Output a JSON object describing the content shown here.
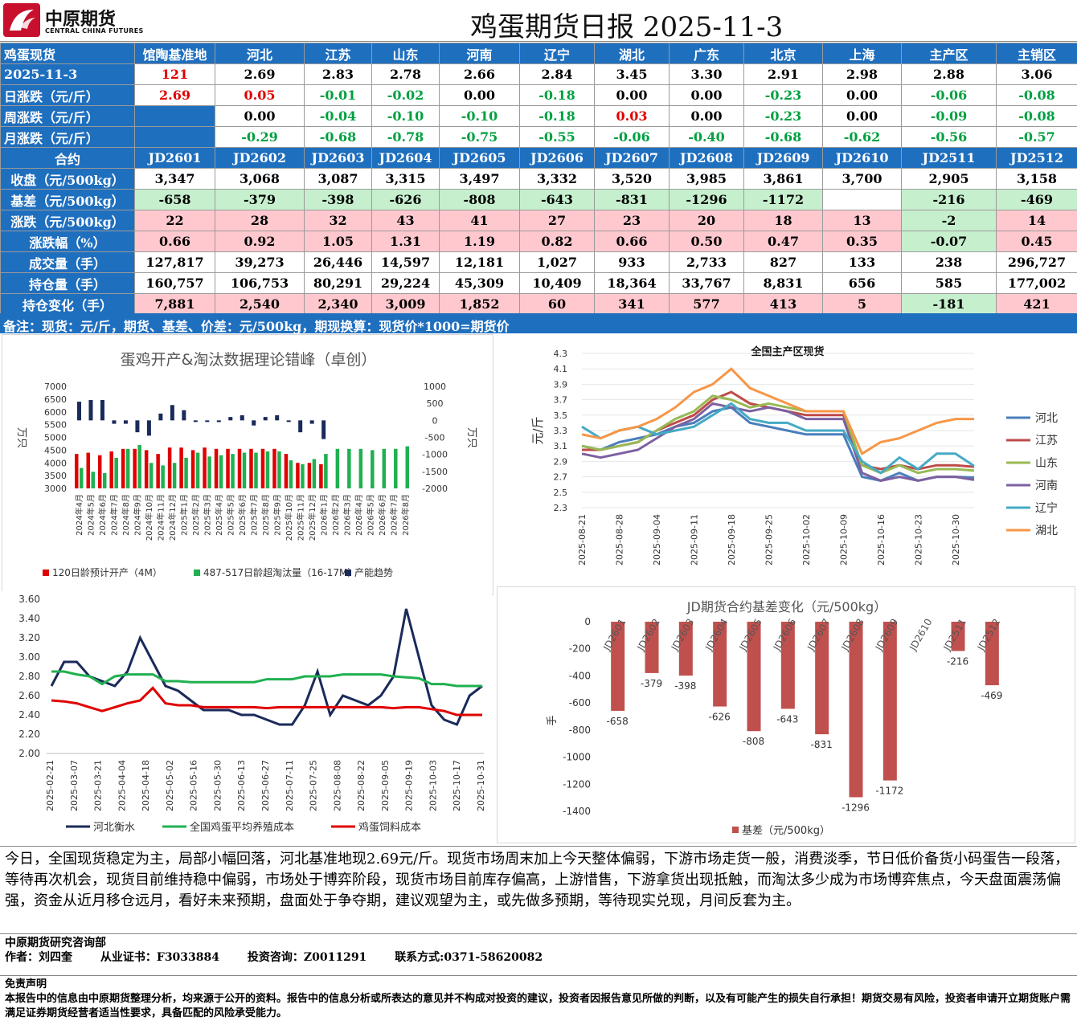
{
  "header": {
    "logo_cn": "中原期货",
    "logo_en": "CENTRAL CHINA FUTURES",
    "title": "鸡蛋期货日报 2025-11-3"
  },
  "spot": {
    "header": [
      "鸡蛋现货",
      "馆陶基准地",
      "河北",
      "江苏",
      "山东",
      "河南",
      "辽宁",
      "湖北",
      "广东",
      "北京",
      "上海",
      "主产区",
      "主销区"
    ],
    "rows": [
      {
        "label": "2025-11-3",
        "cells": [
          "121",
          "2.69",
          "2.83",
          "2.78",
          "2.66",
          "2.84",
          "3.45",
          "3.30",
          "2.91",
          "2.98",
          "2.88",
          "3.06"
        ]
      },
      {
        "label": "日涨跌（元/斤）",
        "cells": [
          "2.69",
          "0.05",
          "-0.01",
          "-0.02",
          "0.00",
          "-0.18",
          "0.00",
          "0.00",
          "-0.23",
          "0.00",
          "-0.06",
          "-0.08"
        ]
      },
      {
        "label": "周涨跌（元/斤）",
        "cells": [
          "",
          "0.00",
          "-0.04",
          "-0.10",
          "-0.10",
          "-0.18",
          "0.03",
          "0.00",
          "-0.23",
          "0.00",
          "-0.09",
          "-0.08"
        ]
      },
      {
        "label": "月涨跌（元/斤）",
        "cells": [
          "",
          "-0.29",
          "-0.68",
          "-0.78",
          "-0.75",
          "-0.55",
          "-0.06",
          "-0.40",
          "-0.68",
          "-0.62",
          "-0.56",
          "-0.57"
        ]
      }
    ]
  },
  "futures": {
    "header": [
      "合约",
      "JD2601",
      "JD2602",
      "JD2603",
      "JD2604",
      "JD2605",
      "JD2606",
      "JD2607",
      "JD2608",
      "JD2609",
      "JD2610",
      "JD2511",
      "JD2512"
    ],
    "rows": [
      {
        "label": "收盘（元/500kg）",
        "cells": [
          "3,347",
          "3,068",
          "3,087",
          "3,315",
          "3,497",
          "3,332",
          "3,520",
          "3,985",
          "3,861",
          "3,700",
          "2,905",
          "3,158"
        ]
      },
      {
        "label": "基差（元/500kg）",
        "cells": [
          "-658",
          "-379",
          "-398",
          "-626",
          "-808",
          "-643",
          "-831",
          "-1296",
          "-1172",
          "",
          "-216",
          "-469"
        ]
      },
      {
        "label": "涨跌（元/500kg）",
        "cells": [
          "22",
          "28",
          "32",
          "43",
          "41",
          "27",
          "23",
          "20",
          "18",
          "13",
          "-2",
          "14"
        ]
      },
      {
        "label": "涨跌幅（%）",
        "cells": [
          "0.66",
          "0.92",
          "1.05",
          "1.31",
          "1.19",
          "0.82",
          "0.66",
          "0.50",
          "0.47",
          "0.35",
          "-0.07",
          "0.45"
        ]
      },
      {
        "label": "成交量（手）",
        "cells": [
          "127,817",
          "39,273",
          "26,446",
          "14,597",
          "12,181",
          "1,027",
          "933",
          "2,733",
          "827",
          "133",
          "238",
          "296,727"
        ]
      },
      {
        "label": "持仓量（手）",
        "cells": [
          "160,757",
          "106,753",
          "80,291",
          "29,224",
          "45,309",
          "10,409",
          "18,364",
          "33,767",
          "8,831",
          "656",
          "585",
          "177,002"
        ]
      },
      {
        "label": "持仓变化（手）",
        "cells": [
          "7,881",
          "2,540",
          "2,340",
          "3,009",
          "1,852",
          "60",
          "341",
          "577",
          "413",
          "5",
          "-181",
          "421"
        ]
      }
    ]
  },
  "note": "备注：现货：元/斤，期货、基差、价差：元/500kg，期现换算：现货价*1000=期货价",
  "colors": {
    "blue": "#1f6fbf",
    "pink": "#ffc8ce",
    "green_fill": "#c6efce",
    "red_text": "#e00000",
    "green_text": "#00a040"
  },
  "chart_data": [
    {
      "type": "bar",
      "title": "蛋鸡开产&淘汰数据理论错峰（卓创）",
      "ylabel": "万只",
      "ylabel2": "万只",
      "ylim": [
        3000,
        7000
      ],
      "yticks": [
        3000,
        3500,
        4000,
        4500,
        5000,
        5500,
        6000,
        6500,
        7000
      ],
      "ylim2": [
        -2000,
        1000
      ],
      "yticks2": [
        -2000,
        -1500,
        -1000,
        -500,
        0,
        500,
        1000
      ],
      "categories": [
        "2024年4月",
        "2024年5月",
        "2024年6月",
        "2024年7月",
        "2024年8月",
        "2024年9月",
        "2024年10月",
        "2024年11月",
        "2024年12月",
        "2025年1月",
        "2025年2月",
        "2025年3月",
        "2025年4月",
        "2025年5月",
        "2025年6月",
        "2025年7月",
        "2025年8月",
        "2025年9月",
        "2025年10月",
        "2025年11月",
        "2025年12月",
        "2026年1月",
        "2026年2月",
        "2026年3月",
        "2026年4月",
        "2026年5月",
        "2026年6月",
        "2026年7月",
        "2026年8月"
      ],
      "series": [
        {
          "name": "120日龄预计开产（4M）",
          "color": "#e00000",
          "values": [
            4350,
            4400,
            4300,
            4450,
            4550,
            4550,
            4500,
            4350,
            4600,
            4600,
            4500,
            4600,
            4550,
            4550,
            4550,
            4550,
            4550,
            4550,
            4350,
            4000,
            4000,
            3950,
            null,
            null,
            null,
            null,
            null,
            null,
            null
          ]
        },
        {
          "name": "487-517日龄超淘汰量（16-17M）",
          "color": "#20b050",
          "values": [
            3800,
            3650,
            3600,
            4200,
            4550,
            4700,
            4000,
            3900,
            4000,
            4200,
            4400,
            4250,
            4300,
            4350,
            4400,
            4400,
            4450,
            4450,
            4100,
            3950,
            4150,
            4350,
            4550,
            4550,
            4550,
            4500,
            4550,
            4550,
            4650
          ]
        },
        {
          "name": "产能趋势",
          "color": "#1a2a5a",
          "axis": "right",
          "values": [
            550,
            600,
            600,
            -100,
            -100,
            -350,
            -450,
            200,
            450,
            300,
            0,
            0,
            -50,
            100,
            150,
            -150,
            100,
            150,
            0,
            -350,
            -100,
            -550,
            null,
            null,
            null,
            null,
            null,
            null,
            null
          ]
        }
      ],
      "legend": "bottom"
    },
    {
      "type": "line",
      "title": "全国主产区现货",
      "ylabel": "元/斤",
      "ylim": [
        2.3,
        4.3
      ],
      "yticks": [
        2.3,
        2.5,
        2.7,
        2.9,
        3.1,
        3.3,
        3.5,
        3.7,
        3.9,
        4.1,
        4.3
      ],
      "xticks": [
        "2025-08-21",
        "2025-08-28",
        "2025-09-04",
        "2025-09-11",
        "2025-09-18",
        "2025-09-25",
        "2025-10-02",
        "2025-10-09",
        "2025-10-16",
        "2025-10-23",
        "2025-10-30"
      ],
      "x": [
        "2025-08-21",
        "2025-08-25",
        "2025-08-28",
        "2025-09-01",
        "2025-09-04",
        "2025-09-08",
        "2025-09-11",
        "2025-09-15",
        "2025-09-18",
        "2025-09-22",
        "2025-09-25",
        "2025-09-29",
        "2025-10-02",
        "2025-10-06",
        "2025-10-09",
        "2025-10-13",
        "2025-10-16",
        "2025-10-20",
        "2025-10-23",
        "2025-10-27",
        "2025-10-30",
        "2025-11-03"
      ],
      "series": [
        {
          "name": "河北",
          "color": "#4a7ebb",
          "values": [
            3.1,
            3.05,
            3.15,
            3.2,
            3.25,
            3.35,
            3.4,
            3.55,
            3.6,
            3.4,
            3.35,
            3.3,
            3.25,
            3.25,
            3.25,
            2.7,
            2.65,
            2.75,
            2.65,
            2.7,
            2.7,
            2.69
          ]
        },
        {
          "name": "江苏",
          "color": "#be4b48",
          "values": [
            3.05,
            3.05,
            3.1,
            3.15,
            3.3,
            3.4,
            3.5,
            3.7,
            3.8,
            3.65,
            3.6,
            3.55,
            3.5,
            3.5,
            3.5,
            2.85,
            2.8,
            2.85,
            2.8,
            2.85,
            2.85,
            2.83
          ]
        },
        {
          "name": "山东",
          "color": "#98b954",
          "values": [
            3.1,
            3.05,
            3.1,
            3.15,
            3.3,
            3.45,
            3.55,
            3.75,
            3.7,
            3.6,
            3.65,
            3.6,
            3.55,
            3.55,
            3.55,
            2.85,
            2.75,
            2.85,
            2.75,
            2.8,
            2.8,
            2.78
          ]
        },
        {
          "name": "河南",
          "color": "#7d60a0",
          "values": [
            3.0,
            2.95,
            3.0,
            3.05,
            3.2,
            3.35,
            3.45,
            3.65,
            3.6,
            3.55,
            3.6,
            3.55,
            3.45,
            3.45,
            3.45,
            2.75,
            2.65,
            2.7,
            2.65,
            2.7,
            2.7,
            2.66
          ]
        },
        {
          "name": "辽宁",
          "color": "#46aac5",
          "values": [
            3.35,
            3.2,
            3.3,
            3.35,
            3.25,
            3.3,
            3.35,
            3.5,
            3.65,
            3.45,
            3.4,
            3.4,
            3.3,
            3.3,
            3.3,
            2.9,
            2.75,
            2.95,
            2.8,
            3.0,
            3.0,
            2.84
          ]
        },
        {
          "name": "湖北",
          "color": "#f79646",
          "values": [
            3.25,
            3.2,
            3.3,
            3.35,
            3.45,
            3.6,
            3.8,
            3.9,
            4.1,
            3.85,
            3.75,
            3.65,
            3.55,
            3.55,
            3.55,
            3.0,
            3.15,
            3.2,
            3.3,
            3.4,
            3.45,
            3.45
          ]
        }
      ],
      "legend": "right"
    },
    {
      "type": "line",
      "title": "",
      "ylim": [
        2.0,
        3.6
      ],
      "yticks": [
        "2.00",
        "2.20",
        "2.40",
        "2.60",
        "2.80",
        "3.00",
        "3.20",
        "3.40",
        "3.60"
      ],
      "xticks": [
        "2025-02-21",
        "2025-03-07",
        "2025-03-21",
        "2025-04-04",
        "2025-04-18",
        "2025-05-02",
        "2025-05-16",
        "2025-05-30",
        "2025-06-13",
        "2025-06-27",
        "2025-07-11",
        "2025-07-25",
        "2025-08-08",
        "2025-08-22",
        "2025-09-05",
        "2025-09-19",
        "2025-10-03",
        "2025-10-17",
        "2025-10-31"
      ],
      "series": [
        {
          "name": "河北衡水",
          "color": "#1a2a5a",
          "values": [
            2.7,
            2.95,
            2.95,
            2.8,
            2.75,
            2.7,
            2.85,
            3.2,
            2.95,
            2.7,
            2.65,
            2.55,
            2.45,
            2.45,
            2.45,
            2.4,
            2.4,
            2.35,
            2.3,
            2.3,
            2.5,
            2.85,
            2.4,
            2.6,
            2.55,
            2.5,
            2.6,
            2.8,
            3.5,
            3.0,
            2.5,
            2.35,
            2.3,
            2.6,
            2.7
          ]
        },
        {
          "name": "全国鸡蛋平均养殖成本",
          "color": "#20b050",
          "values": [
            2.85,
            2.85,
            2.82,
            2.8,
            2.72,
            2.8,
            2.82,
            2.82,
            2.82,
            2.75,
            2.75,
            2.74,
            2.74,
            2.74,
            2.74,
            2.74,
            2.74,
            2.77,
            2.77,
            2.77,
            2.8,
            2.8,
            2.8,
            2.82,
            2.82,
            2.82,
            2.82,
            2.8,
            2.79,
            2.78,
            2.72,
            2.72,
            2.7,
            2.7,
            2.7
          ]
        },
        {
          "name": "鸡蛋饲料成本",
          "color": "#e00000",
          "values": [
            2.55,
            2.54,
            2.52,
            2.48,
            2.44,
            2.48,
            2.52,
            2.55,
            2.68,
            2.52,
            2.5,
            2.5,
            2.48,
            2.48,
            2.48,
            2.48,
            2.48,
            2.47,
            2.48,
            2.48,
            2.48,
            2.48,
            2.48,
            2.48,
            2.48,
            2.48,
            2.48,
            2.47,
            2.48,
            2.48,
            2.46,
            2.44,
            2.4,
            2.4,
            2.4
          ]
        }
      ],
      "legend": "bottom"
    },
    {
      "type": "bar",
      "title": "JD期货合约基差变化（元/500kg）",
      "ylabel": "手",
      "ylim": [
        -1400,
        0
      ],
      "yticks": [
        0,
        -200,
        -400,
        -600,
        -800,
        -1000,
        -1200,
        -1400
      ],
      "categories": [
        "JD2601",
        "JD2602",
        "JD2603",
        "JD2604",
        "JD2605",
        "JD2606",
        "JD2607",
        "JD2608",
        "JD2609",
        "JD2610",
        "JD2511",
        "JD2512"
      ],
      "series": [
        {
          "name": "基差（元/500kg）",
          "color": "#c0504d",
          "values": [
            -658,
            -379,
            -398,
            -626,
            -808,
            -643,
            -831,
            -1296,
            -1172,
            null,
            -216,
            -469
          ]
        }
      ],
      "legend": "bottom"
    }
  ],
  "comment": "今日，全国现货稳定为主，局部小幅回落，河北基准地现2.69元/斤。现货市场周末加上今天整体偏弱，下游市场走货一般，消费淡季，节日低价备货小码蛋告一段落，等待再次机会，现货目前维持稳中偏弱，市场处于博弈阶段，现货市场目前库存偏高，上游惜售，下游拿货出现抵触，而淘汰多少成为市场博弈焦点，今天盘面震荡偏强，资金从近月移仓远月，看好未来预期，盘面处于争夺期，建议观望为主，或先做多预期，等待现实兑现，月间反套为主。",
  "author": {
    "dept": "中原期货研究咨询部",
    "name": "作者：刘四奎",
    "cert": "从业证书：F3033884",
    "consult": "投资咨询：Z0011291",
    "contact": "联系方式:0371-58620082"
  },
  "disclaimer": {
    "title": "免责声明",
    "text": "本报告中的信息由中原期货整理分析，均来源于公开的资料。报告中的信息分析或所表达的意见并不构成对投资的建议，投资者因报告意见所做的判断，以及有可能产生的损失自行承担！期货交易有风险，投资者申请开立期货账户需满足证券期货经营者适当性要求，具备匹配的风险承受能力。"
  }
}
